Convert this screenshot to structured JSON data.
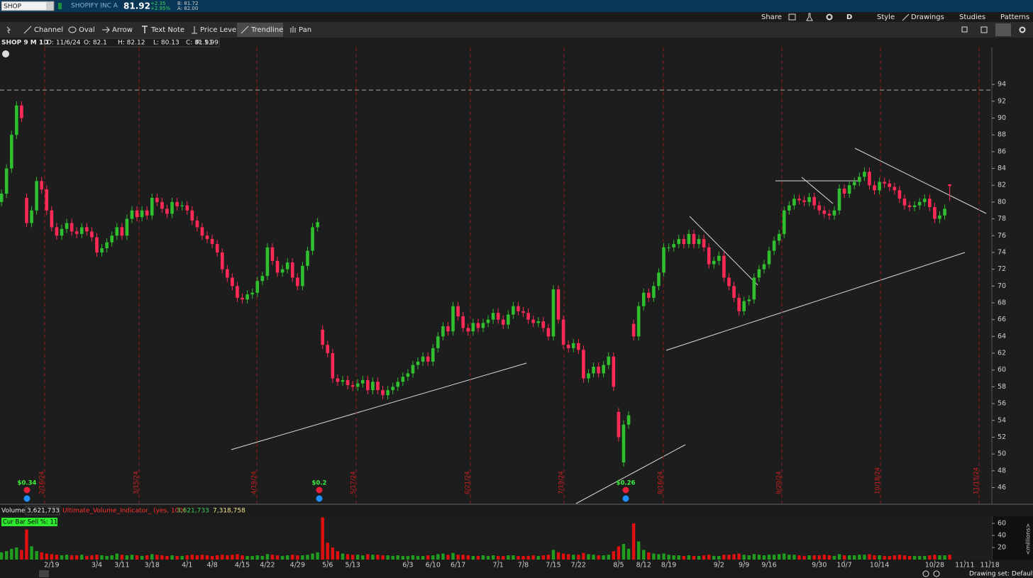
{
  "header": {
    "symbol": "SHOP",
    "company": "SHOPIFY INC A",
    "last": "81.92",
    "change": "+2.35",
    "change_pct": "+2.95%",
    "bid": "B: 81.72",
    "ask": "A: 82.00"
  },
  "top_menu": [
    "Share",
    "D",
    "Style",
    "Drawings",
    "Studies",
    "Patterns"
  ],
  "tools": [
    "Channel",
    "Oval",
    "Arrow",
    "Text Note",
    "Price Level",
    "Trendline",
    "Pan"
  ],
  "chart_info": [
    "SHOP 9 M 1D",
    "D: 11/6/24",
    "O: 82.1",
    "H: 82.12",
    "L: 80.13",
    "C: 81.91",
    "R: 1.99"
  ],
  "chart_data": {
    "type": "candlestick",
    "up_color": "#2fbf2f",
    "down_color": "#ff2a55",
    "open": [
      80,
      81,
      84,
      88,
      91.5,
      80.5,
      77.5,
      79,
      82.5,
      81.5,
      79,
      77,
      76,
      76.8,
      77.5,
      76.5,
      76.2,
      77,
      76.5,
      75.8,
      74,
      74.5,
      75.2,
      76,
      77,
      76,
      78,
      79,
      78.2,
      79,
      78.4,
      80.5,
      80,
      79.2,
      78.6,
      80,
      79.5,
      79.6,
      79,
      77.8,
      77,
      76,
      75.6,
      75,
      74,
      72,
      71,
      70,
      68.6,
      68.4,
      69,
      69.2,
      70.6,
      71.2,
      74.6,
      73,
      71.6,
      72,
      72.8,
      71,
      70,
      72.4,
      74.2,
      77,
      64.8,
      63,
      62,
      59,
      58.6,
      58.8,
      58.2,
      58,
      58.4,
      58.8,
      57.6,
      58.6,
      57.6,
      57,
      57.6,
      58,
      58.6,
      59.2,
      59.6,
      60.6,
      61,
      61.6,
      61,
      62.6,
      64,
      65.2,
      64.6,
      67.6,
      66.4,
      65,
      64.6,
      65.6,
      65,
      65.6,
      66,
      66.8,
      66,
      65.4,
      66.6,
      67.6,
      67,
      66.8,
      66,
      65.6,
      65.8,
      65,
      64,
      69.6,
      66,
      63,
      62.6,
      63.2,
      62.4,
      59,
      59.6,
      60.4,
      59.6,
      60.6,
      61.6,
      55,
      49,
      53.5,
      65.5,
      64,
      67.6,
      69.2,
      68.6,
      70,
      71.6,
      74.6,
      74.6,
      75,
      75.6,
      75,
      76.2,
      75,
      75.6,
      74.6,
      72.6,
      73,
      73.6,
      71,
      70,
      68.6,
      67,
      68.2,
      68.4,
      71,
      72,
      72.6,
      74.2,
      75.4,
      76.2,
      79,
      79.6,
      80.4,
      80.2,
      80,
      80.6,
      79.6,
      79,
      78.6,
      78.4,
      79,
      81.6,
      81,
      82,
      82.4,
      83,
      83.6,
      82,
      81.4,
      82.4,
      82.2,
      81.8,
      81.4,
      80.4,
      79.6,
      79.4,
      79.6,
      80,
      80.4,
      79.4,
      78,
      78.4,
      82.1
    ],
    "high": [
      81.5,
      84.5,
      88.5,
      92,
      92,
      81,
      79.5,
      83,
      83,
      82,
      79.5,
      77.5,
      77.3,
      78,
      78,
      77,
      77.5,
      77.5,
      77,
      76.3,
      75,
      75.7,
      76.5,
      77.5,
      77.5,
      78.5,
      79.5,
      79.5,
      79.5,
      79.5,
      81,
      81,
      80.5,
      79.7,
      80.5,
      80.5,
      80.1,
      80.1,
      79.5,
      78.3,
      77.5,
      76.5,
      76.1,
      75.5,
      74.5,
      72.5,
      71.5,
      70.5,
      69.1,
      69.5,
      69.7,
      71.1,
      71.7,
      75.1,
      75.1,
      73.5,
      72.5,
      73.3,
      73.3,
      71.5,
      72.9,
      74.7,
      77.5,
      78.1,
      65.3,
      63.5,
      62.5,
      59.5,
      59.3,
      59.3,
      58.7,
      58.9,
      59.3,
      59.3,
      59.1,
      59.1,
      58.1,
      58.1,
      58.5,
      59.1,
      59.7,
      60.1,
      61.1,
      61.5,
      62.1,
      62.1,
      63.1,
      64.5,
      65.7,
      65.7,
      68.1,
      68.1,
      66.9,
      65.5,
      66.1,
      66.1,
      66.1,
      66.5,
      67.3,
      67.3,
      66.5,
      67.1,
      68.1,
      68.1,
      67.5,
      67.3,
      66.5,
      66.3,
      66.3,
      65.5,
      70.1,
      70.1,
      66.5,
      63.5,
      63.7,
      63.7,
      62.9,
      60.1,
      60.9,
      60.9,
      61.1,
      62.1,
      62.1,
      55.5,
      54,
      55.1,
      66,
      68.1,
      69.7,
      69.7,
      70.5,
      72.1,
      75.1,
      75.1,
      75.5,
      76.1,
      76.1,
      76.7,
      76.7,
      76.1,
      76.1,
      75.1,
      73.5,
      74.1,
      74.1,
      71.5,
      70.5,
      69.1,
      68.7,
      68.9,
      71.5,
      72.5,
      73.1,
      74.7,
      75.9,
      76.7,
      79.5,
      80.1,
      80.9,
      80.9,
      80.7,
      81.1,
      81.1,
      80.1,
      79.5,
      79.1,
      79.5,
      82.1,
      82.1,
      82.5,
      82.9,
      83.5,
      84.1,
      84.1,
      82.5,
      82.9,
      82.9,
      82.7,
      82.3,
      81.9,
      80.9,
      80.1,
      80.1,
      80.5,
      80.9,
      80.9,
      79.9,
      78.9,
      79.7,
      82.12
    ],
    "low": [
      79.5,
      80.5,
      83.5,
      87.5,
      89.5,
      77,
      77,
      78.5,
      81,
      78.5,
      76.5,
      75.5,
      75.5,
      76.3,
      76,
      75.7,
      75.7,
      76,
      75.3,
      73.5,
      73.5,
      74,
      74.7,
      75.5,
      75.5,
      75.5,
      77.5,
      77.7,
      77.7,
      77.9,
      77.9,
      79.5,
      78.7,
      78.1,
      78.1,
      79,
      79,
      78.5,
      77.3,
      76.5,
      75.5,
      75.1,
      74.5,
      73.5,
      71.5,
      70.5,
      69.5,
      68.1,
      67.9,
      67.9,
      68.5,
      68.7,
      70.1,
      70.7,
      72.5,
      71.1,
      71.1,
      71.5,
      70.5,
      69.5,
      69.5,
      71.9,
      73.7,
      76.5,
      62.5,
      61.5,
      58.5,
      58.1,
      58.1,
      57.7,
      57.5,
      57.5,
      57.9,
      57.1,
      57.1,
      57.1,
      56.5,
      56.5,
      57.1,
      57.5,
      58.1,
      58.7,
      59.1,
      60.1,
      60.5,
      60.5,
      60.5,
      62.1,
      63.5,
      64.1,
      64.1,
      65.9,
      64.5,
      64.1,
      64.1,
      64.5,
      64.5,
      65.1,
      65.5,
      65.5,
      64.9,
      64.9,
      66.1,
      66.5,
      66.3,
      65.5,
      65.1,
      65.1,
      64.5,
      63.5,
      63.5,
      65.5,
      62.5,
      62.1,
      62.1,
      61.9,
      58.5,
      58.5,
      59.1,
      59.1,
      59.1,
      60.1,
      57.5,
      51.5,
      48.5,
      53,
      63.5,
      63.5,
      67.1,
      68.1,
      68.1,
      69.5,
      71.1,
      74.1,
      74.1,
      74.5,
      74.5,
      74.5,
      74.5,
      74.5,
      74.1,
      72.1,
      72.1,
      72.5,
      70.5,
      69.5,
      68.1,
      66.5,
      66.5,
      67.7,
      67.9,
      70.5,
      71.5,
      72.1,
      73.7,
      74.9,
      75.7,
      78.5,
      79.1,
      79.7,
      79.5,
      79.5,
      79.1,
      78.5,
      78.1,
      77.9,
      77.9,
      78.5,
      80.5,
      80.5,
      81.5,
      81.9,
      82.5,
      81.5,
      80.9,
      80.9,
      81.7,
      81.3,
      80.9,
      79.9,
      79.1,
      78.9,
      78.9,
      79.1,
      79.5,
      78.9,
      77.5,
      77.5,
      77.9,
      80.13
    ],
    "close": [
      81,
      84,
      88,
      91.5,
      90,
      77.5,
      79,
      82.5,
      81.5,
      79,
      77,
      76,
      76.8,
      77.5,
      76.5,
      76.2,
      77,
      76.5,
      75.8,
      74,
      74.5,
      75.2,
      76,
      77,
      76,
      78,
      79,
      78.2,
      79,
      78.4,
      80.5,
      80,
      79.2,
      78.6,
      80,
      79.5,
      79.6,
      79,
      77.8,
      77,
      76,
      75.6,
      75,
      74,
      72,
      71,
      70,
      68.6,
      68.4,
      69,
      69.2,
      70.6,
      71.2,
      74.6,
      73,
      71.6,
      72,
      72.8,
      71,
      70,
      72.4,
      74.2,
      77,
      77.6,
      63,
      62,
      59,
      58.6,
      58.8,
      58.2,
      58,
      58.4,
      58.8,
      57.6,
      58.6,
      57.6,
      57,
      57.6,
      58,
      58.6,
      59.2,
      59.6,
      60.6,
      61,
      61.6,
      61,
      62.6,
      64,
      65.2,
      64.6,
      67.6,
      66.4,
      65,
      64.6,
      65.6,
      65,
      65.6,
      66,
      66.8,
      66,
      65.4,
      66.6,
      67.6,
      67,
      66.8,
      66,
      65.6,
      65.8,
      65,
      64,
      69.6,
      66,
      63,
      62.6,
      63.2,
      62.4,
      59,
      59.6,
      60.4,
      59.6,
      60.6,
      61.6,
      58,
      52,
      53.5,
      54.6,
      64,
      67.6,
      69.2,
      68.6,
      70,
      71.6,
      74.6,
      74.6,
      75,
      75.6,
      75,
      76.2,
      75,
      75.6,
      74.6,
      72.6,
      73,
      73.6,
      71,
      70,
      68.6,
      67,
      68.2,
      68.4,
      71,
      72,
      72.6,
      74.2,
      75.4,
      76.2,
      79,
      79.6,
      80.4,
      80.2,
      80,
      80.6,
      79.6,
      79,
      78.6,
      78.4,
      79,
      81.6,
      81,
      82,
      82.4,
      83,
      83.6,
      82,
      81.4,
      82.4,
      82.2,
      81.8,
      81.4,
      80.4,
      79.6,
      79.4,
      79.6,
      80,
      80.4,
      79.4,
      78,
      78.4,
      79.2,
      81.91
    ],
    "xlim": [
      -0.3,
      197.4
    ],
    "ylim": [
      44.1,
      98.4
    ],
    "yticks": [
      46,
      48,
      50,
      52,
      54,
      56,
      58,
      60,
      62,
      64,
      66,
      68,
      70,
      72,
      74,
      76,
      78,
      80,
      82,
      84,
      86,
      88,
      90,
      92,
      94
    ],
    "xticks": [
      {
        "value": 10,
        "label": "2/19"
      },
      {
        "value": 19,
        "label": "3/4"
      },
      {
        "value": 24,
        "label": "3/11"
      },
      {
        "value": 30,
        "label": "3/18"
      },
      {
        "value": 37,
        "label": "4/1"
      },
      {
        "value": 42,
        "label": "4/8"
      },
      {
        "value": 48,
        "label": "4/15"
      },
      {
        "value": 53,
        "label": "4/22"
      },
      {
        "value": 59,
        "label": "4/29"
      },
      {
        "value": 65,
        "label": "5/6"
      },
      {
        "value": 70,
        "label": "5/13"
      },
      {
        "value": 81,
        "label": "6/3"
      },
      {
        "value": 86,
        "label": "6/10"
      },
      {
        "value": 91,
        "label": "6/17"
      },
      {
        "value": 99,
        "label": "7/1"
      },
      {
        "value": 104,
        "label": "7/8"
      },
      {
        "value": 110,
        "label": "7/15"
      },
      {
        "value": 115,
        "label": "7/22"
      },
      {
        "value": 123,
        "label": "8/5"
      },
      {
        "value": 128,
        "label": "8/12"
      },
      {
        "value": 133,
        "label": "8/19"
      },
      {
        "value": 143,
        "label": "9/2"
      },
      {
        "value": 148,
        "label": "9/9"
      },
      {
        "value": 153,
        "label": "9/16"
      },
      {
        "value": 163,
        "label": "9/30"
      },
      {
        "value": 168,
        "label": "10/7"
      },
      {
        "value": 175,
        "label": "10/14"
      },
      {
        "value": 186,
        "label": "10/28"
      },
      {
        "value": 192,
        "label": "11/11"
      },
      {
        "value": 197,
        "label": "11/18"
      }
    ],
    "expirations": [
      "2/16/24",
      "3/15/24",
      "4/19/24",
      "5/17/24",
      "6/21/24",
      "7/19/24",
      "8/16/24",
      "9/20/24",
      "10/18/24",
      "11/15/24"
    ],
    "dividends": [
      "$0.34",
      "$0.2",
      "$0.26"
    ]
  },
  "volume": {
    "title": "Volume",
    "value": "3,621,733",
    "study": "Ultimate_Volume_Indicator_ (yes, 100)",
    "value2": "3,621,733",
    "value3": "7,318,758",
    "badge": "Cur Bar Sell %: 11",
    "unit": "<millions>",
    "values": [
      12,
      14,
      18,
      20,
      16,
      50,
      22,
      14,
      12,
      10,
      9,
      8,
      7,
      8,
      7,
      7,
      8,
      6,
      7,
      8,
      7,
      6,
      7,
      10,
      8,
      7,
      8,
      7,
      6,
      7,
      9,
      8,
      7,
      6,
      7,
      6,
      6,
      7,
      8,
      7,
      8,
      7,
      6,
      7,
      8,
      7,
      8,
      9,
      7,
      6,
      6,
      7,
      6,
      9,
      8,
      7,
      6,
      7,
      8,
      7,
      7,
      8,
      10,
      12,
      70,
      28,
      20,
      14,
      10,
      9,
      8,
      8,
      7,
      9,
      8,
      8,
      7,
      7,
      6,
      7,
      6,
      6,
      7,
      6,
      6,
      7,
      7,
      9,
      10,
      8,
      11,
      8,
      8,
      7,
      6,
      6,
      7,
      6,
      7,
      6,
      6,
      7,
      7,
      6,
      6,
      6,
      7,
      6,
      7,
      8,
      16,
      12,
      10,
      9,
      8,
      8,
      11,
      9,
      8,
      7,
      7,
      8,
      14,
      22,
      26,
      18,
      60,
      30,
      16,
      12,
      10,
      9,
      10,
      8,
      7,
      7,
      6,
      7,
      6,
      6,
      7,
      8,
      6,
      6,
      8,
      8,
      9,
      10,
      8,
      7,
      9,
      8,
      7,
      8,
      8,
      9,
      10,
      8,
      8,
      7,
      6,
      7,
      7,
      7,
      8,
      7,
      6,
      9,
      7,
      7,
      7,
      8,
      8,
      9,
      7,
      7,
      6,
      6,
      7,
      8,
      7,
      6,
      6,
      6,
      6,
      7,
      8,
      7,
      7,
      8
    ],
    "ylim": [
      0,
      71.8
    ],
    "yticks": [
      20,
      40,
      60
    ]
  },
  "footer": "Drawing set: Default"
}
